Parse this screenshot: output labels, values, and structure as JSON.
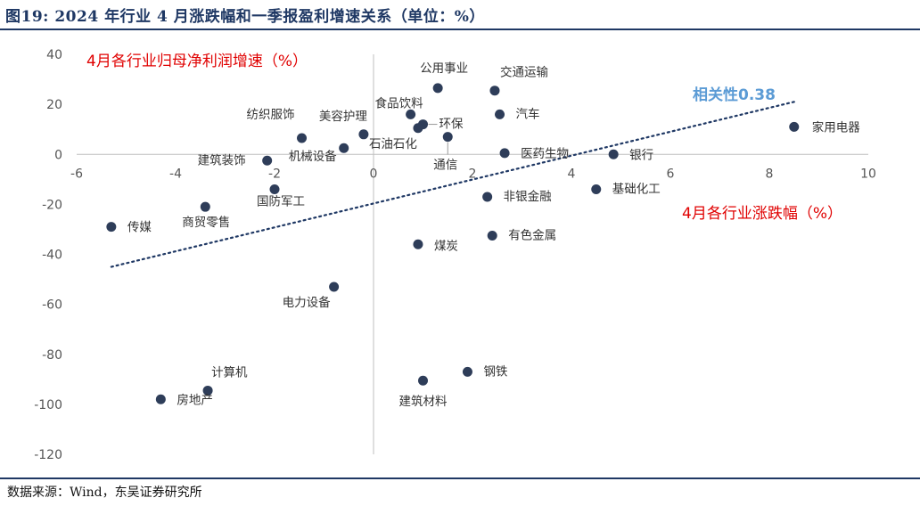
{
  "figure": {
    "title": "图19:  2024 年行业 4 月涨跌幅和一季报盈利增速关系（单位：%）",
    "source": "数据来源：Wind，东吴证券研究所"
  },
  "colors": {
    "point": "#2e3d59",
    "trend": "#1f3864",
    "axis": "#bfbfbf",
    "ann_red": "#e00000",
    "ann_blue": "#5b9bd5",
    "rule": "#1f3864"
  },
  "chart_data": {
    "type": "scatter",
    "xlabel": "4月各行业涨跌幅（%）",
    "ylabel": "4月各行业归母净利润增速（%）",
    "xlim": [
      -6,
      10
    ],
    "ylim": [
      -120,
      40
    ],
    "x_ticks": [
      -6,
      -4,
      -2,
      0,
      2,
      4,
      6,
      8,
      10
    ],
    "y_ticks": [
      40,
      20,
      0,
      -20,
      -40,
      -60,
      -80,
      -100,
      -120
    ],
    "grid": false,
    "trendline": {
      "style": "dotted",
      "from": [
        -5.3,
        -45
      ],
      "to": [
        8.5,
        21
      ],
      "label": "相关性0.38"
    },
    "points": [
      {
        "name": "家用电器",
        "x": 8.5,
        "y": 11
      },
      {
        "name": "银行",
        "x": 4.85,
        "y": 0
      },
      {
        "name": "基础化工",
        "x": 4.5,
        "y": -14
      },
      {
        "name": "医药生物",
        "x": 2.65,
        "y": 0.5
      },
      {
        "name": "交通运输",
        "x": 2.45,
        "y": 25.5
      },
      {
        "name": "汽车",
        "x": 2.55,
        "y": 16
      },
      {
        "name": "非银金融",
        "x": 2.3,
        "y": -17
      },
      {
        "name": "有色金属",
        "x": 2.4,
        "y": -32.5
      },
      {
        "name": "钢铁",
        "x": 1.9,
        "y": -87
      },
      {
        "name": "建筑材料",
        "x": 1.0,
        "y": -90.5
      },
      {
        "name": "煤炭",
        "x": 0.9,
        "y": -36
      },
      {
        "name": "公用事业",
        "x": 1.3,
        "y": 26.5
      },
      {
        "name": "食品饮料",
        "x": 0.75,
        "y": 16
      },
      {
        "name": "环保",
        "x": 1.0,
        "y": 12
      },
      {
        "name": "通信",
        "x": 1.5,
        "y": 7
      },
      {
        "name": "石油石化",
        "x": 0.9,
        "y": 10.5
      },
      {
        "name": "美容护理",
        "x": -0.2,
        "y": 8
      },
      {
        "name": "机械设备",
        "x": -0.6,
        "y": 2.5
      },
      {
        "name": "纺织服饰",
        "x": -1.45,
        "y": 6.5
      },
      {
        "name": "建筑装饰",
        "x": -2.15,
        "y": -2.5
      },
      {
        "name": "国防军工",
        "x": -2.0,
        "y": -14
      },
      {
        "name": "商贸零售",
        "x": -3.4,
        "y": -21
      },
      {
        "name": "传媒",
        "x": -5.3,
        "y": -29
      },
      {
        "name": "电力设备",
        "x": -0.8,
        "y": -53
      },
      {
        "name": "计算机",
        "x": -3.35,
        "y": -94.5
      },
      {
        "name": "房地产",
        "x": -4.3,
        "y": -98
      }
    ]
  }
}
